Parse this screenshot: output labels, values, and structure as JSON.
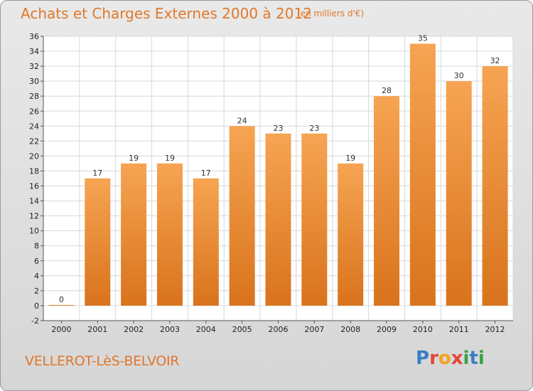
{
  "header": {
    "title": "Achats et Charges Externes 2000 à 2012",
    "subtitle": "(en milliers d'€)"
  },
  "footer": {
    "place": "VELLEROT-LèS-BELVOIR",
    "logo_letters": [
      "P",
      "r",
      "o",
      "x",
      "i",
      "t",
      "i"
    ],
    "logo_colors": [
      "#3a7fc4",
      "#e6443a",
      "#f3a21c",
      "#e6443a",
      "#3aa14a",
      "#3a7fc4",
      "#3aa14a"
    ]
  },
  "colors": {
    "bar_light": "#f6a453",
    "bar_dark": "#d9731c",
    "text_accent": "#e0782c",
    "plot_background": "#ffffff",
    "grid": "#d8d8d8"
  },
  "chart_data": {
    "type": "bar",
    "title": "Achats et Charges Externes 2000 à 2012",
    "subtitle": "(en milliers d'€)",
    "categories": [
      "2000",
      "2001",
      "2002",
      "2003",
      "2004",
      "2005",
      "2006",
      "2007",
      "2008",
      "2009",
      "2010",
      "2011",
      "2012"
    ],
    "values": [
      0,
      17,
      19,
      19,
      17,
      24,
      23,
      23,
      19,
      28,
      35,
      30,
      32
    ],
    "data_labels": [
      "0",
      "17",
      "19",
      "19",
      "17",
      "24",
      "23",
      "23",
      "19",
      "28",
      "35",
      "30",
      "32"
    ],
    "ylim": [
      -2,
      36
    ],
    "yticks": [
      -2,
      0,
      2,
      4,
      6,
      8,
      10,
      12,
      14,
      16,
      18,
      20,
      22,
      24,
      26,
      28,
      30,
      32,
      34,
      36
    ],
    "grid": true,
    "legend": "none"
  }
}
